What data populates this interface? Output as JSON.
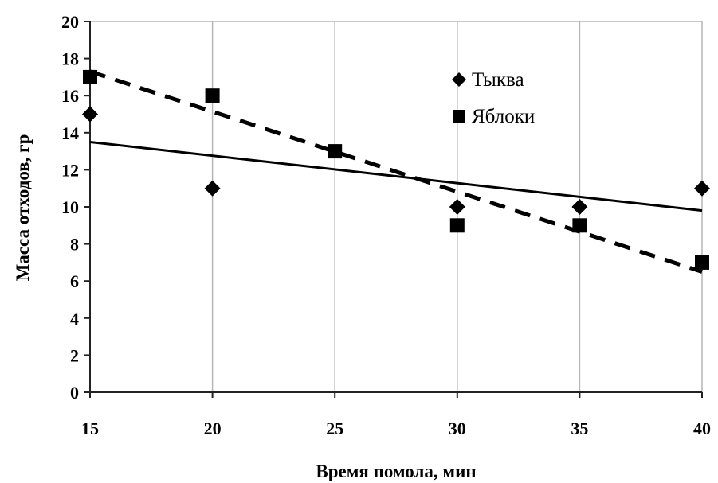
{
  "chart_data": {
    "type": "scatter",
    "xlabel": "Время помола, мин",
    "ylabel": "Масса отходов, гр",
    "xlim": [
      15,
      40
    ],
    "ylim": [
      0,
      20
    ],
    "xticks": [
      "15",
      "20",
      "25",
      "30",
      "35",
      "40"
    ],
    "yticks": [
      "0",
      "2",
      "4",
      "6",
      "8",
      "10",
      "12",
      "14",
      "16",
      "18",
      "20"
    ],
    "grid": "vertical",
    "legend_position": "top-right",
    "series": [
      {
        "name": "Тыква",
        "marker": "diamond",
        "color": "#000000",
        "points": [
          [
            15,
            15
          ],
          [
            20,
            11
          ],
          [
            30,
            10
          ],
          [
            35,
            10
          ],
          [
            40,
            11
          ]
        ],
        "trendline": {
          "style": "solid",
          "from": [
            15,
            13.5
          ],
          "to": [
            40,
            9.8
          ]
        }
      },
      {
        "name": "Яблоки",
        "marker": "square",
        "color": "#000000",
        "points": [
          [
            15,
            17
          ],
          [
            20,
            16
          ],
          [
            25,
            13
          ],
          [
            30,
            9
          ],
          [
            35,
            9
          ],
          [
            40,
            7
          ]
        ],
        "trendline": {
          "style": "dashed",
          "from": [
            15,
            17.3
          ],
          "to": [
            40,
            6.5
          ]
        }
      }
    ]
  }
}
